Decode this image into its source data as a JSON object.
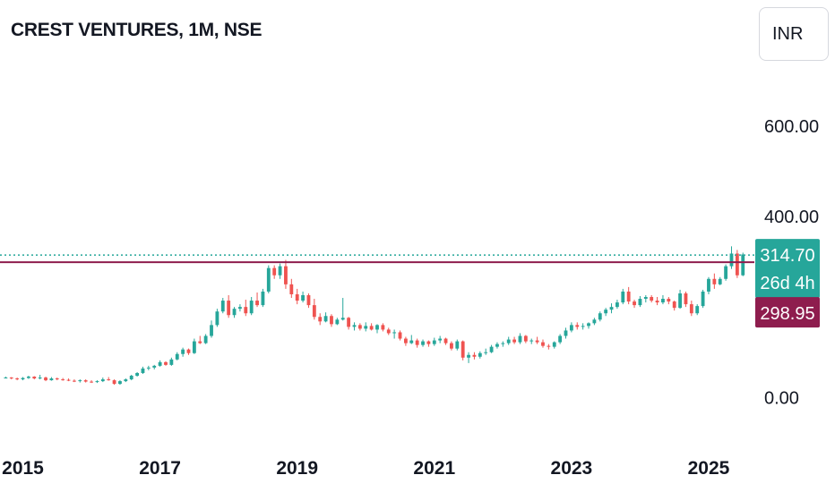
{
  "header": {
    "title": "CREST VENTURES, 1M, NSE",
    "currency": "INR"
  },
  "colors": {
    "up": "#26a69a",
    "down": "#ef5350",
    "level": "#8e1d4e",
    "last": "#26a69a"
  },
  "chart_data": {
    "type": "candlestick",
    "title": "CREST VENTURES, 1M, NSE",
    "interval": "1M",
    "exchange": "NSE",
    "currency": "INR",
    "y_ticks": [
      "0.00",
      "400.00",
      "600.00"
    ],
    "x_ticks": [
      {
        "label": "2015",
        "year": 2015
      },
      {
        "label": "2017",
        "year": 2017
      },
      {
        "label": "2019",
        "year": 2019
      },
      {
        "label": "2021",
        "year": 2021
      },
      {
        "label": "2023",
        "year": 2023
      },
      {
        "label": "2025",
        "year": 2025
      }
    ],
    "ylim": [
      -120,
      740
    ],
    "xlim": [
      "2014-09",
      "2025-09"
    ],
    "last_price": {
      "value": 314.7,
      "label": "314.70",
      "countdown": "26d 4h"
    },
    "level_line": {
      "value": 298.95,
      "label": "298.95"
    },
    "start": "2014-10",
    "ohlc": [
      [
        44,
        46,
        42,
        44
      ],
      [
        44,
        45,
        40,
        42
      ],
      [
        42,
        44,
        38,
        40
      ],
      [
        40,
        45,
        38,
        43
      ],
      [
        43,
        48,
        41,
        46
      ],
      [
        46,
        47,
        40,
        42
      ],
      [
        42,
        50,
        40,
        44
      ],
      [
        44,
        46,
        36,
        38
      ],
      [
        38,
        45,
        37,
        42
      ],
      [
        42,
        44,
        38,
        40
      ],
      [
        40,
        43,
        37,
        39
      ],
      [
        39,
        42,
        36,
        37
      ],
      [
        37,
        40,
        34,
        36
      ],
      [
        36,
        40,
        33,
        38
      ],
      [
        38,
        40,
        33,
        35
      ],
      [
        35,
        38,
        32,
        34
      ],
      [
        34,
        38,
        32,
        36
      ],
      [
        36,
        44,
        34,
        40
      ],
      [
        40,
        45,
        37,
        38
      ],
      [
        38,
        40,
        28,
        30
      ],
      [
        30,
        38,
        28,
        36
      ],
      [
        36,
        42,
        34,
        40
      ],
      [
        40,
        50,
        38,
        48
      ],
      [
        48,
        56,
        46,
        54
      ],
      [
        54,
        68,
        52,
        64
      ],
      [
        64,
        70,
        60,
        66
      ],
      [
        66,
        72,
        62,
        70
      ],
      [
        70,
        82,
        68,
        78
      ],
      [
        78,
        80,
        70,
        72
      ],
      [
        72,
        88,
        70,
        84
      ],
      [
        84,
        100,
        82,
        96
      ],
      [
        96,
        110,
        90,
        106
      ],
      [
        106,
        108,
        94,
        98
      ],
      [
        98,
        130,
        96,
        124
      ],
      [
        124,
        136,
        118,
        120
      ],
      [
        120,
        140,
        118,
        136
      ],
      [
        136,
        170,
        132,
        160
      ],
      [
        160,
        196,
        156,
        190
      ],
      [
        190,
        220,
        186,
        214
      ],
      [
        214,
        226,
        176,
        182
      ],
      [
        182,
        200,
        176,
        196
      ],
      [
        196,
        206,
        190,
        200
      ],
      [
        200,
        216,
        180,
        186
      ],
      [
        186,
        222,
        182,
        214
      ],
      [
        214,
        232,
        200,
        204
      ],
      [
        204,
        240,
        200,
        234
      ],
      [
        234,
        292,
        230,
        286
      ],
      [
        286,
        292,
        262,
        270
      ],
      [
        270,
        296,
        262,
        290
      ],
      [
        290,
        304,
        240,
        250
      ],
      [
        250,
        262,
        220,
        228
      ],
      [
        228,
        240,
        206,
        214
      ],
      [
        214,
        234,
        210,
        226
      ],
      [
        226,
        230,
        198,
        204
      ],
      [
        204,
        218,
        172,
        178
      ],
      [
        178,
        186,
        160,
        168
      ],
      [
        168,
        188,
        166,
        180
      ],
      [
        180,
        184,
        156,
        162
      ],
      [
        162,
        176,
        160,
        172
      ],
      [
        172,
        220,
        170,
        176
      ],
      [
        176,
        178,
        150,
        156
      ],
      [
        156,
        166,
        148,
        160
      ],
      [
        160,
        164,
        148,
        152
      ],
      [
        152,
        166,
        146,
        158
      ],
      [
        158,
        164,
        148,
        150
      ],
      [
        150,
        162,
        142,
        160
      ],
      [
        160,
        164,
        146,
        150
      ],
      [
        150,
        154,
        138,
        142
      ],
      [
        142,
        150,
        130,
        144
      ],
      [
        144,
        148,
        126,
        130
      ],
      [
        130,
        134,
        114,
        120
      ],
      [
        120,
        138,
        118,
        126
      ],
      [
        126,
        130,
        110,
        116
      ],
      [
        116,
        128,
        112,
        124
      ],
      [
        124,
        126,
        112,
        118
      ],
      [
        118,
        132,
        114,
        126
      ],
      [
        126,
        136,
        120,
        130
      ],
      [
        130,
        132,
        116,
        120
      ],
      [
        120,
        124,
        104,
        108
      ],
      [
        108,
        128,
        104,
        124
      ],
      [
        124,
        126,
        82,
        88
      ],
      [
        88,
        100,
        76,
        94
      ],
      [
        94,
        100,
        84,
        90
      ],
      [
        90,
        102,
        86,
        98
      ],
      [
        98,
        108,
        94,
        100
      ],
      [
        100,
        116,
        98,
        112
      ],
      [
        112,
        122,
        108,
        118
      ],
      [
        118,
        124,
        112,
        120
      ],
      [
        120,
        134,
        116,
        128
      ],
      [
        128,
        134,
        118,
        122
      ],
      [
        122,
        142,
        118,
        136
      ],
      [
        136,
        138,
        120,
        124
      ],
      [
        124,
        130,
        118,
        126
      ],
      [
        126,
        134,
        118,
        122
      ],
      [
        122,
        128,
        110,
        114
      ],
      [
        114,
        118,
        106,
        112
      ],
      [
        112,
        124,
        108,
        122
      ],
      [
        122,
        140,
        118,
        136
      ],
      [
        136,
        154,
        130,
        148
      ],
      [
        148,
        166,
        144,
        160
      ],
      [
        160,
        166,
        150,
        156
      ],
      [
        156,
        164,
        150,
        158
      ],
      [
        158,
        166,
        152,
        164
      ],
      [
        164,
        176,
        160,
        172
      ],
      [
        172,
        190,
        168,
        186
      ],
      [
        186,
        198,
        180,
        194
      ],
      [
        194,
        208,
        186,
        200
      ],
      [
        200,
        216,
        196,
        210
      ],
      [
        210,
        240,
        206,
        234
      ],
      [
        234,
        244,
        206,
        212
      ],
      [
        212,
        216,
        198,
        204
      ],
      [
        204,
        224,
        200,
        218
      ],
      [
        218,
        226,
        210,
        222
      ],
      [
        222,
        226,
        210,
        214
      ],
      [
        214,
        222,
        204,
        210
      ],
      [
        210,
        226,
        206,
        218
      ],
      [
        218,
        222,
        206,
        212
      ],
      [
        212,
        214,
        192,
        198
      ],
      [
        198,
        238,
        196,
        230
      ],
      [
        230,
        234,
        200,
        206
      ],
      [
        206,
        214,
        180,
        186
      ],
      [
        186,
        206,
        182,
        202
      ],
      [
        202,
        238,
        198,
        234
      ],
      [
        234,
        266,
        228,
        262
      ],
      [
        262,
        274,
        240,
        250
      ],
      [
        250,
        266,
        248,
        262
      ],
      [
        262,
        294,
        258,
        290
      ],
      [
        290,
        334,
        284,
        318
      ],
      [
        318,
        326,
        264,
        270
      ],
      [
        270,
        320,
        268,
        316
      ]
    ]
  }
}
